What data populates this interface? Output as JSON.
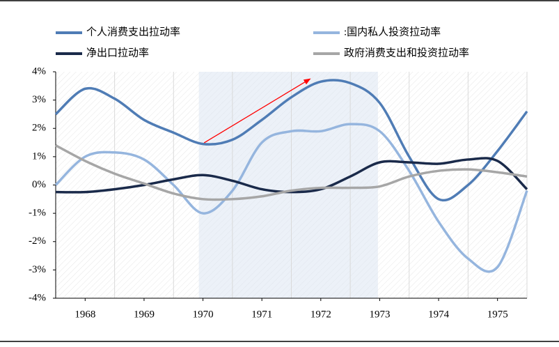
{
  "chart_data": {
    "type": "line",
    "x": [
      1967.5,
      1968,
      1968.5,
      1969,
      1969.5,
      1970,
      1970.5,
      1971,
      1971.5,
      1972,
      1972.5,
      1973,
      1973.5,
      1974,
      1974.5,
      1975,
      1975.5
    ],
    "series": [
      {
        "name": "个人消费支出拉动率",
        "color": "#4f7cb5",
        "values": [
          2.5,
          3.4,
          3.05,
          2.3,
          1.85,
          1.45,
          1.6,
          2.3,
          3.1,
          3.65,
          3.6,
          2.9,
          1.0,
          -0.5,
          0.0,
          1.2,
          2.6
        ]
      },
      {
        "name": ":国内私人投资拉动率",
        "color": "#95b5de",
        "values": [
          0.0,
          1.0,
          1.15,
          0.9,
          0.0,
          -1.0,
          -0.2,
          1.5,
          1.9,
          1.9,
          2.15,
          1.9,
          0.5,
          -1.3,
          -2.6,
          -2.9,
          -0.2
        ]
      },
      {
        "name": "净出口拉动率",
        "color": "#1a2a4a",
        "values": [
          -0.25,
          -0.25,
          -0.15,
          0.0,
          0.2,
          0.35,
          0.15,
          -0.15,
          -0.25,
          -0.15,
          0.3,
          0.8,
          0.8,
          0.75,
          0.9,
          0.85,
          -0.15
        ]
      },
      {
        "name": "政府消费支出和投资拉动率",
        "color": "#a6a6a6",
        "values": [
          1.4,
          0.85,
          0.4,
          0.05,
          -0.3,
          -0.5,
          -0.5,
          -0.4,
          -0.2,
          -0.1,
          -0.1,
          -0.05,
          0.3,
          0.5,
          0.55,
          0.45,
          0.3
        ]
      }
    ],
    "xlim": [
      1967.5,
      1975.5
    ],
    "xticks": [
      1968,
      1969,
      1970,
      1971,
      1972,
      1973,
      1974,
      1975
    ],
    "ylim": [
      -4,
      4
    ],
    "yticks": [
      {
        "value": 4,
        "label": "4%"
      },
      {
        "value": 3,
        "label": "3%"
      },
      {
        "value": 2,
        "label": "2%"
      },
      {
        "value": 1,
        "label": "1%"
      },
      {
        "value": 0,
        "label": "0%"
      },
      {
        "value": -1,
        "label": "-1%"
      },
      {
        "value": -2,
        "label": "-2%"
      },
      {
        "value": -3,
        "label": "-3%"
      },
      {
        "value": -4,
        "label": "-4%"
      }
    ],
    "shade": [
      1969.93,
      1972.97
    ],
    "annotation_arrow": {
      "from": [
        1970.02,
        1.49
      ],
      "to": [
        1971.82,
        3.75
      ],
      "color": "#ff0000"
    }
  }
}
